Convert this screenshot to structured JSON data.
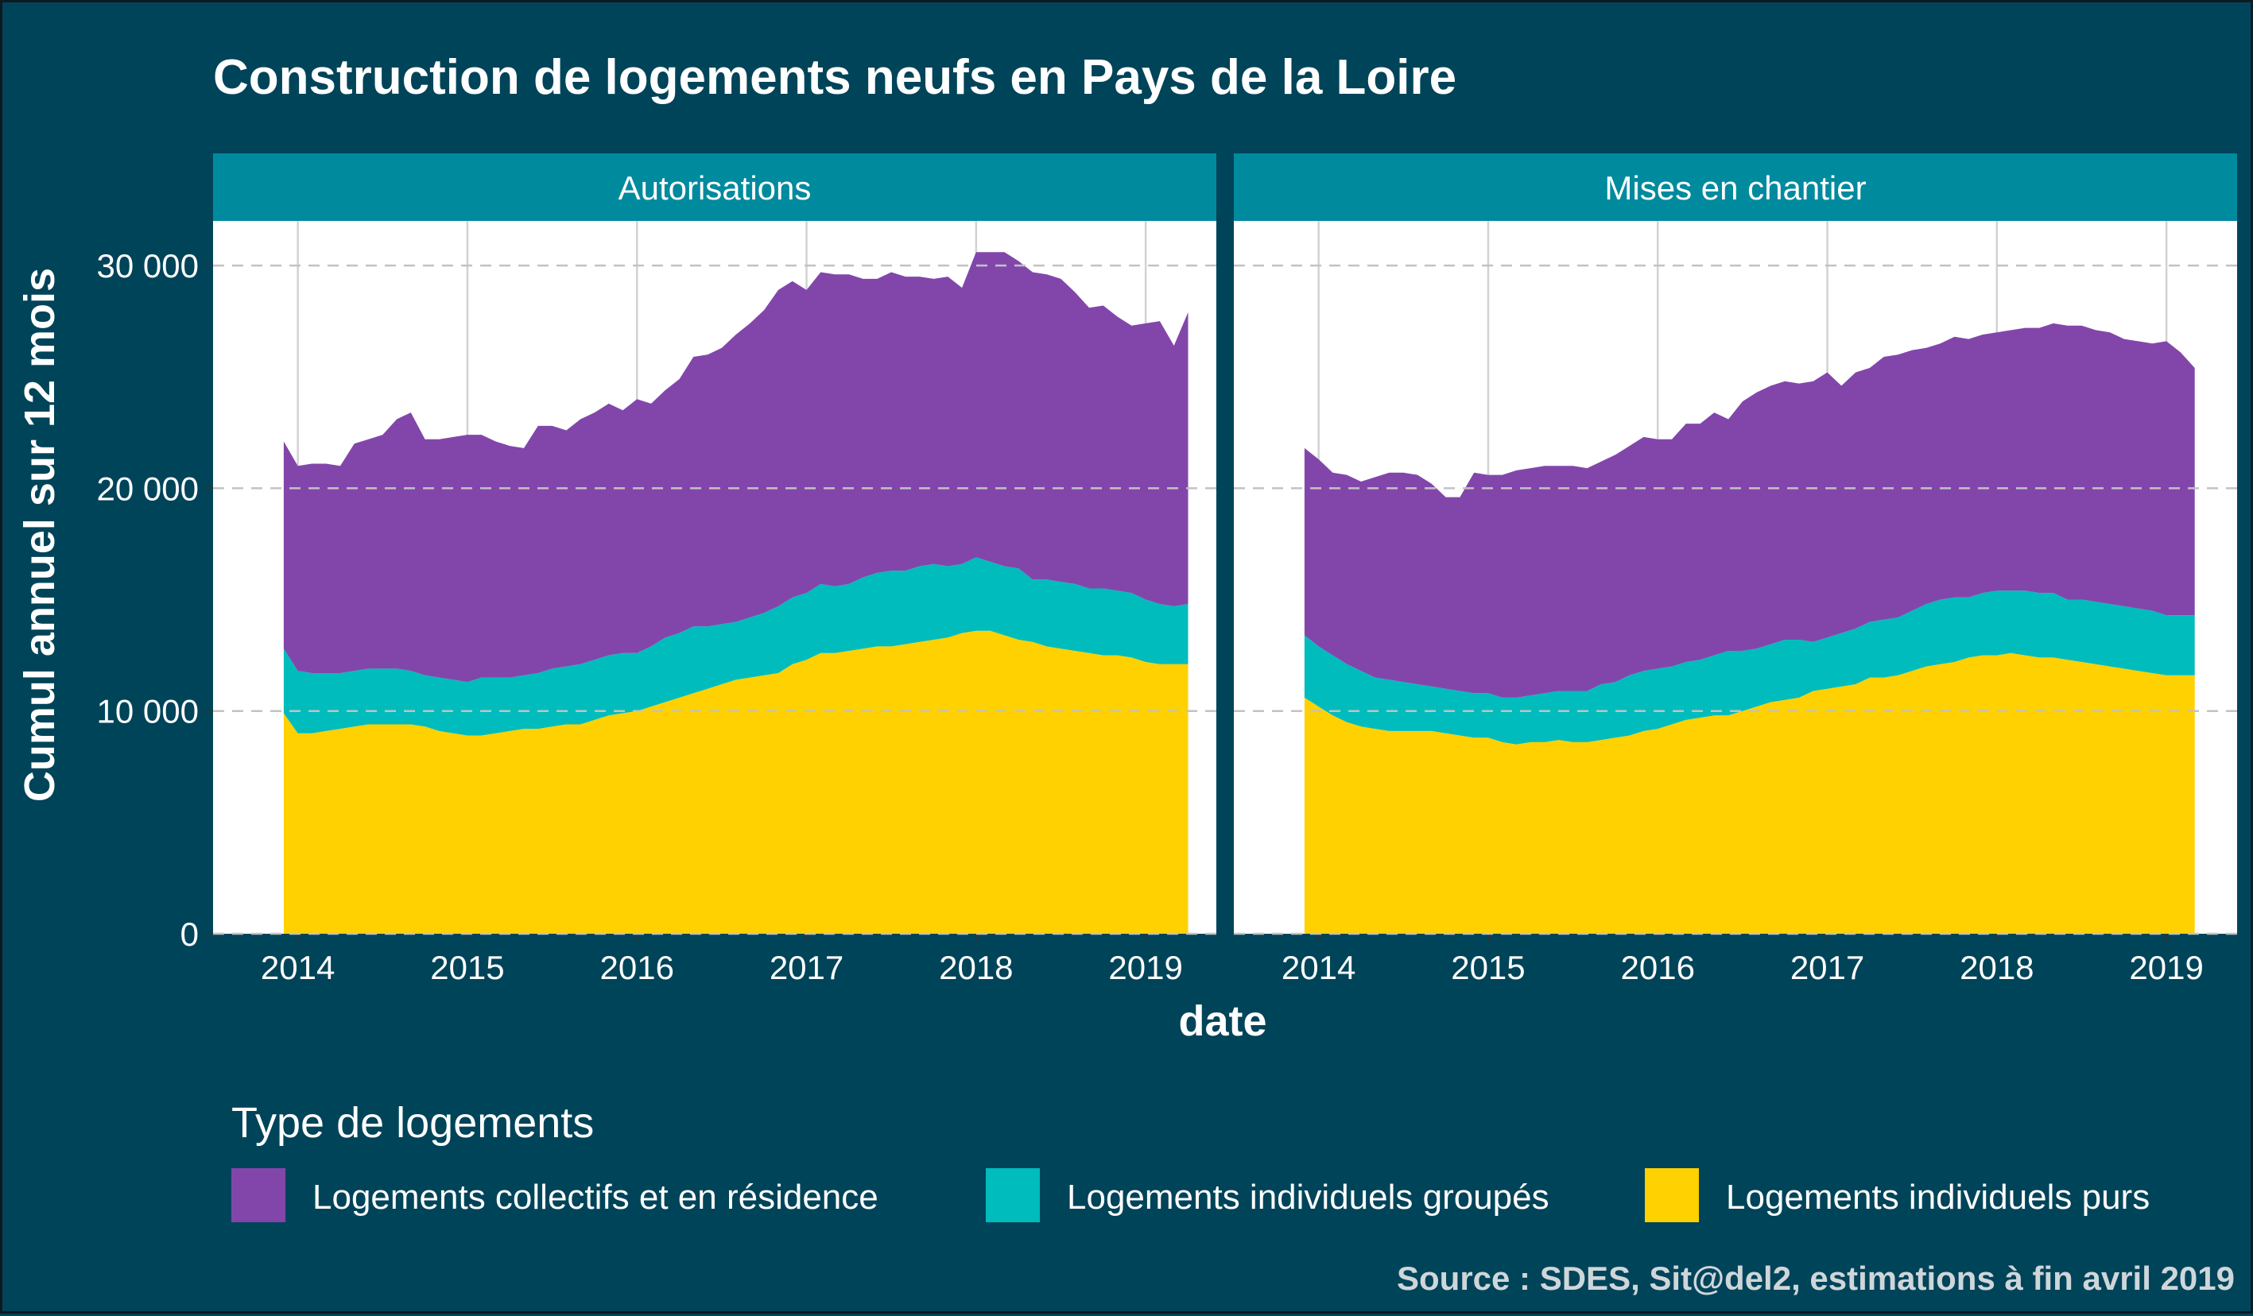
{
  "chart_data": {
    "type": "area",
    "stacked": true,
    "title": "Construction de logements neufs en Pays de la Loire",
    "xlabel": "date",
    "ylabel": "Cumul annuel sur 12 mois",
    "ylim": [
      0,
      32000
    ],
    "xlim": [
      "2013-07",
      "2019-06"
    ],
    "x_ticks": [
      "2014",
      "2015",
      "2016",
      "2017",
      "2018",
      "2019"
    ],
    "y_ticks": [
      {
        "value": 0,
        "label": "0"
      },
      {
        "value": 10000,
        "label": "10 000"
      },
      {
        "value": 20000,
        "label": "20 000"
      },
      {
        "value": 30000,
        "label": "30 000"
      }
    ],
    "grid": true,
    "legend": {
      "title": "Type de logements",
      "position": "bottom"
    },
    "caption": "Source : SDES, Sit@del2, estimations à fin avril 2019",
    "series_info": [
      {
        "key": "purs",
        "name": "Logements individuels purs",
        "color": "#FFD100"
      },
      {
        "key": "groupes",
        "name": "Logements individuels groupés",
        "color": "#00BCBD"
      },
      {
        "key": "collectifs",
        "name": "Logements collectifs et en résidence",
        "color": "#8246AB"
      }
    ],
    "legend_order": [
      "collectifs",
      "groupes",
      "purs"
    ],
    "panels": [
      {
        "name": "Autorisations",
        "x": [
          "2013-12",
          "2014-01",
          "2014-02",
          "2014-03",
          "2014-04",
          "2014-05",
          "2014-06",
          "2014-07",
          "2014-08",
          "2014-09",
          "2014-10",
          "2014-11",
          "2014-12",
          "2015-01",
          "2015-02",
          "2015-03",
          "2015-04",
          "2015-05",
          "2015-06",
          "2015-07",
          "2015-08",
          "2015-09",
          "2015-10",
          "2015-11",
          "2015-12",
          "2016-01",
          "2016-02",
          "2016-03",
          "2016-04",
          "2016-05",
          "2016-06",
          "2016-07",
          "2016-08",
          "2016-09",
          "2016-10",
          "2016-11",
          "2016-12",
          "2017-01",
          "2017-02",
          "2017-03",
          "2017-04",
          "2017-05",
          "2017-06",
          "2017-07",
          "2017-08",
          "2017-09",
          "2017-10",
          "2017-11",
          "2017-12",
          "2018-01",
          "2018-02",
          "2018-03",
          "2018-04",
          "2018-05",
          "2018-06",
          "2018-07",
          "2018-08",
          "2018-09",
          "2018-10",
          "2018-11",
          "2018-12",
          "2019-01",
          "2019-02",
          "2019-03",
          "2019-04"
        ],
        "purs": [
          9900,
          9000,
          9000,
          9100,
          9200,
          9300,
          9400,
          9400,
          9400,
          9400,
          9300,
          9100,
          9000,
          8900,
          8900,
          9000,
          9100,
          9200,
          9200,
          9300,
          9400,
          9400,
          9600,
          9800,
          9900,
          10000,
          10200,
          10400,
          10600,
          10800,
          11000,
          11200,
          11400,
          11500,
          11600,
          11700,
          12100,
          12300,
          12600,
          12600,
          12700,
          12800,
          12900,
          12900,
          13000,
          13100,
          13200,
          13300,
          13500,
          13600,
          13600,
          13400,
          13200,
          13100,
          12900,
          12800,
          12700,
          12600,
          12500,
          12500,
          12400,
          12200,
          12100,
          12100,
          12100
        ],
        "groupes": [
          2900,
          2800,
          2700,
          2600,
          2500,
          2500,
          2500,
          2500,
          2500,
          2400,
          2300,
          2400,
          2400,
          2400,
          2600,
          2500,
          2400,
          2400,
          2500,
          2600,
          2600,
          2700,
          2700,
          2700,
          2700,
          2600,
          2700,
          2900,
          2900,
          3000,
          2800,
          2700,
          2600,
          2700,
          2800,
          3000,
          3000,
          3000,
          3100,
          3000,
          3000,
          3200,
          3300,
          3400,
          3300,
          3400,
          3400,
          3200,
          3100,
          3300,
          3100,
          3100,
          3200,
          2800,
          3000,
          3000,
          3000,
          2900,
          3000,
          2900,
          2900,
          2800,
          2700,
          2600,
          2700
        ],
        "collectifs": [
          9300,
          9200,
          9400,
          9400,
          9300,
          10200,
          10300,
          10500,
          11200,
          11600,
          10600,
          10700,
          10900,
          11100,
          10900,
          10600,
          10400,
          10200,
          11100,
          10900,
          10600,
          11000,
          11100,
          11300,
          10900,
          11400,
          10900,
          11100,
          11400,
          12100,
          12200,
          12400,
          12900,
          13200,
          13600,
          14200,
          14200,
          13600,
          14000,
          14000,
          13900,
          13400,
          13200,
          13400,
          13200,
          13000,
          12800,
          13000,
          12400,
          13700,
          13900,
          14100,
          13800,
          13800,
          13700,
          13600,
          13100,
          12600,
          12700,
          12300,
          12000,
          12400,
          12700,
          11700,
          13100
        ]
      },
      {
        "name": "Mises en chantier",
        "x": [
          "2013-12",
          "2014-01",
          "2014-02",
          "2014-03",
          "2014-04",
          "2014-05",
          "2014-06",
          "2014-07",
          "2014-08",
          "2014-09",
          "2014-10",
          "2014-11",
          "2014-12",
          "2015-01",
          "2015-02",
          "2015-03",
          "2015-04",
          "2015-05",
          "2015-06",
          "2015-07",
          "2015-08",
          "2015-09",
          "2015-10",
          "2015-11",
          "2015-12",
          "2016-01",
          "2016-02",
          "2016-03",
          "2016-04",
          "2016-05",
          "2016-06",
          "2016-07",
          "2016-08",
          "2016-09",
          "2016-10",
          "2016-11",
          "2016-12",
          "2017-01",
          "2017-02",
          "2017-03",
          "2017-04",
          "2017-05",
          "2017-06",
          "2017-07",
          "2017-08",
          "2017-09",
          "2017-10",
          "2017-11",
          "2017-12",
          "2018-01",
          "2018-02",
          "2018-03",
          "2018-04",
          "2018-05",
          "2018-06",
          "2018-07",
          "2018-08",
          "2018-09",
          "2018-10",
          "2018-11",
          "2018-12",
          "2019-01",
          "2019-02",
          "2019-03"
        ],
        "purs": [
          10600,
          10200,
          9800,
          9500,
          9300,
          9200,
          9100,
          9100,
          9100,
          9100,
          9000,
          8900,
          8800,
          8800,
          8600,
          8500,
          8600,
          8600,
          8700,
          8600,
          8600,
          8700,
          8800,
          8900,
          9100,
          9200,
          9400,
          9600,
          9700,
          9800,
          9800,
          10000,
          10200,
          10400,
          10500,
          10600,
          10900,
          11000,
          11100,
          11200,
          11500,
          11500,
          11600,
          11800,
          12000,
          12100,
          12200,
          12400,
          12500,
          12500,
          12600,
          12500,
          12400,
          12400,
          12300,
          12200,
          12100,
          12000,
          11900,
          11800,
          11700,
          11600,
          11600,
          11600
        ],
        "groupes": [
          2800,
          2700,
          2700,
          2600,
          2500,
          2300,
          2300,
          2200,
          2100,
          2000,
          2000,
          2000,
          2000,
          2000,
          2000,
          2100,
          2100,
          2200,
          2200,
          2300,
          2300,
          2500,
          2500,
          2700,
          2700,
          2700,
          2600,
          2600,
          2600,
          2700,
          2900,
          2700,
          2600,
          2600,
          2700,
          2600,
          2200,
          2300,
          2400,
          2500,
          2500,
          2600,
          2600,
          2700,
          2800,
          2900,
          2900,
          2700,
          2800,
          2900,
          2800,
          2900,
          2900,
          2900,
          2700,
          2800,
          2800,
          2800,
          2800,
          2800,
          2800,
          2700,
          2700,
          2700
        ],
        "collectifs": [
          8400,
          8400,
          8200,
          8500,
          8500,
          9000,
          9300,
          9400,
          9400,
          9100,
          8600,
          8700,
          9900,
          9800,
          10000,
          10200,
          10200,
          10200,
          10100,
          10100,
          10000,
          10000,
          10200,
          10300,
          10500,
          10300,
          10200,
          10700,
          10600,
          10900,
          10400,
          11200,
          11500,
          11600,
          11600,
          11500,
          11700,
          11900,
          11100,
          11500,
          11400,
          11800,
          11800,
          11700,
          11500,
          11500,
          11700,
          11600,
          11600,
          11600,
          11700,
          11800,
          11900,
          12100,
          12300,
          12300,
          12200,
          12200,
          12000,
          12000,
          12000,
          12300,
          11800,
          11100
        ]
      }
    ]
  }
}
